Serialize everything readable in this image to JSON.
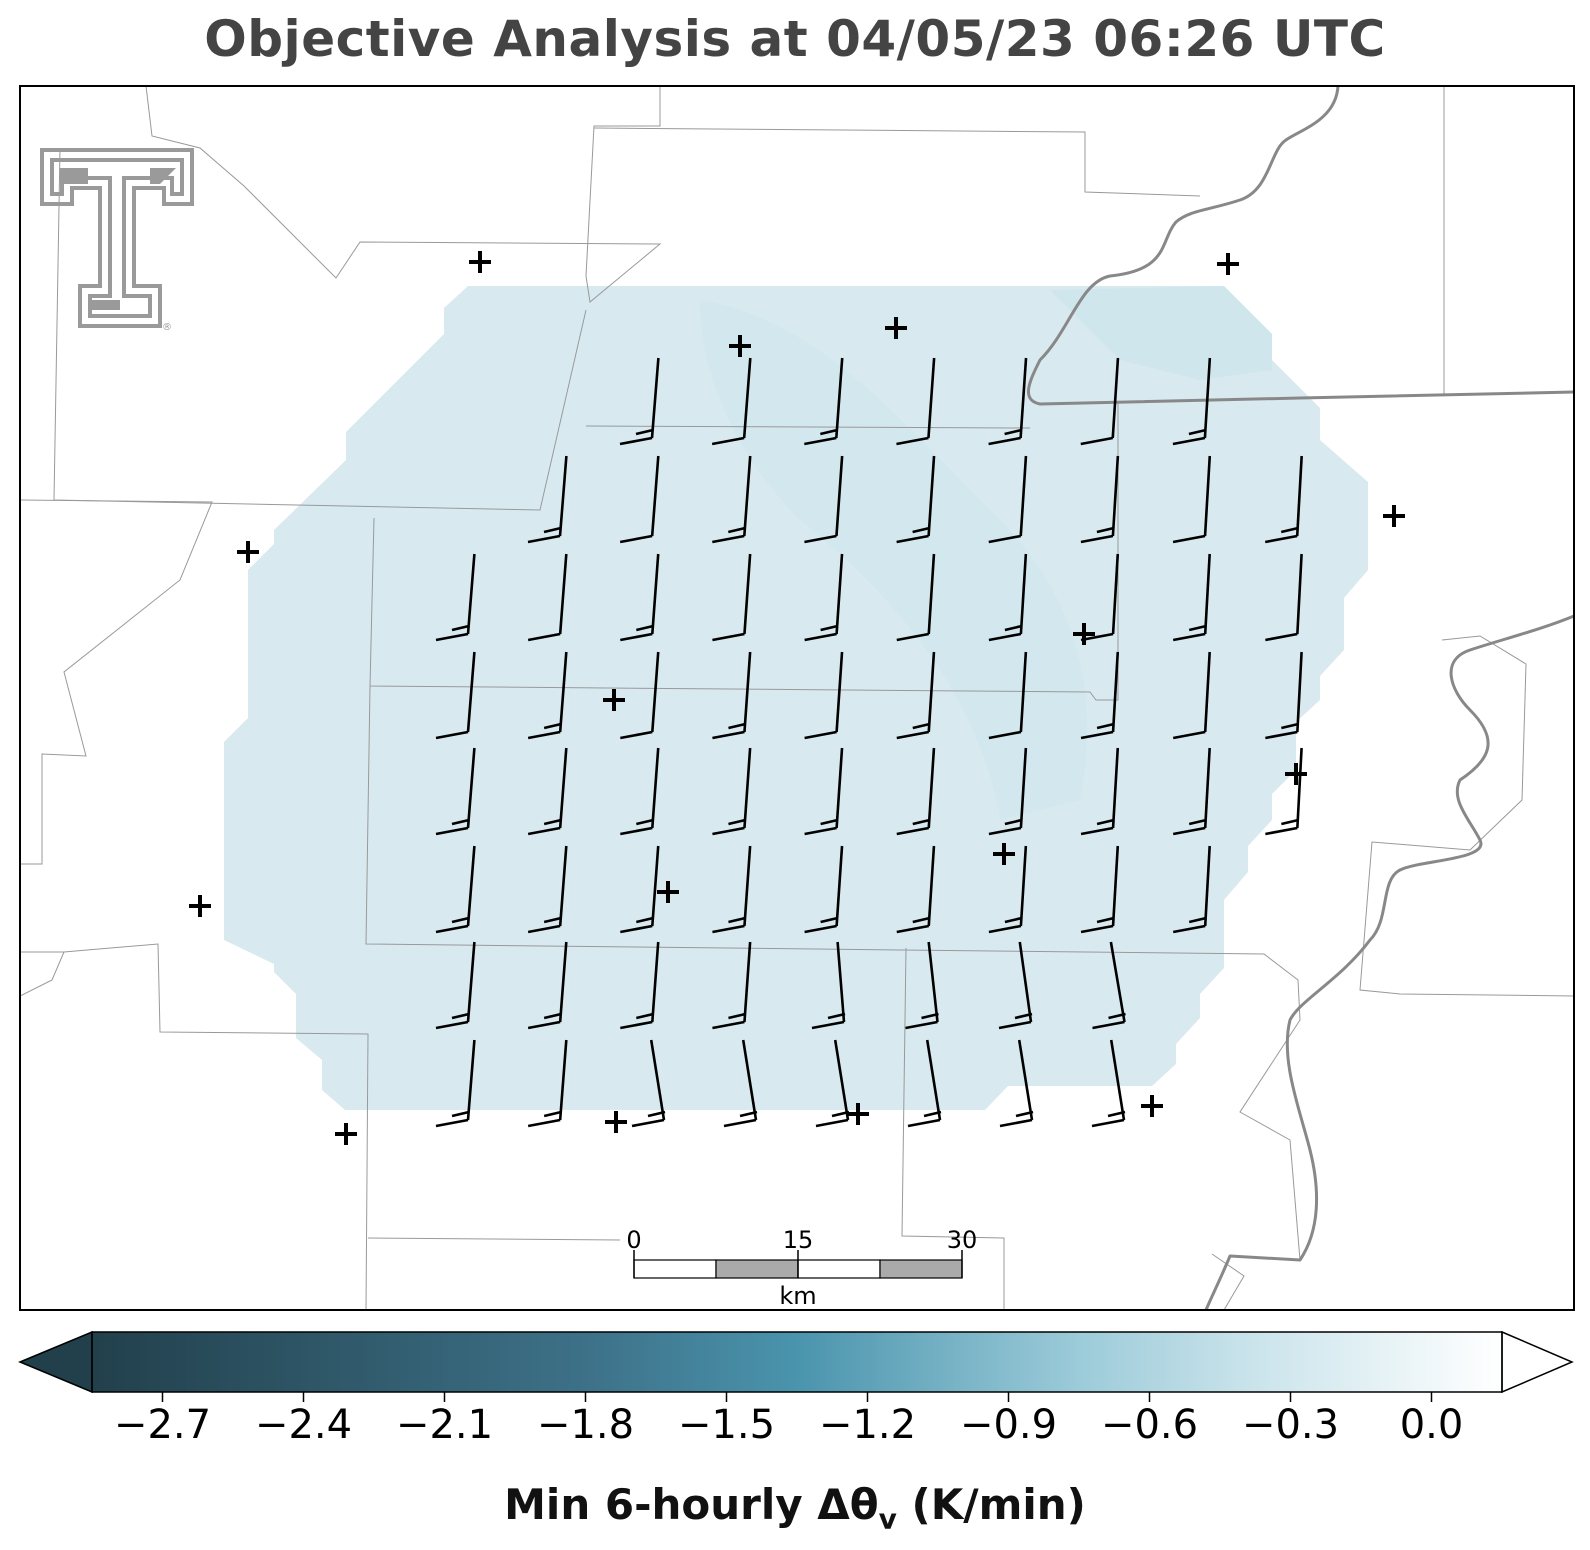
{
  "title": "Objective Analysis at 04/05/23 06:26 UTC",
  "colorbar": {
    "label_prefix": "Min 6-hourly Δθ",
    "label_subscript": "v",
    "label_suffix": " (K/min)",
    "min": -2.85,
    "max": 0.15,
    "ticks": [
      "−2.7",
      "−2.4",
      "−2.1",
      "−1.8",
      "−1.5",
      "−1.2",
      "−0.9",
      "−0.6",
      "−0.3",
      "0.0"
    ],
    "tick_values": [
      -2.7,
      -2.4,
      -2.1,
      -1.8,
      -1.5,
      -1.2,
      -0.9,
      -0.6,
      -0.3,
      0.0
    ],
    "colors": {
      "low": "#22404c",
      "mid": "#4a8fa8",
      "high_mid": "#a8d3e0",
      "high": "#ffffff"
    },
    "extend": "both"
  },
  "scale_bar": {
    "ticks": [
      "0",
      "15",
      "30"
    ],
    "unit": "km"
  },
  "field": {
    "value_approx": -0.75,
    "fill_color": "#d6e9ef"
  },
  "colors": {
    "boundary": "#888888",
    "county": "#999999",
    "barb": "#000000",
    "station": "#000000",
    "title": "#444444",
    "logo": "#9a9a9a"
  },
  "logo": {
    "name": "texas-tech-double-t-logo",
    "registered": "®"
  }
}
